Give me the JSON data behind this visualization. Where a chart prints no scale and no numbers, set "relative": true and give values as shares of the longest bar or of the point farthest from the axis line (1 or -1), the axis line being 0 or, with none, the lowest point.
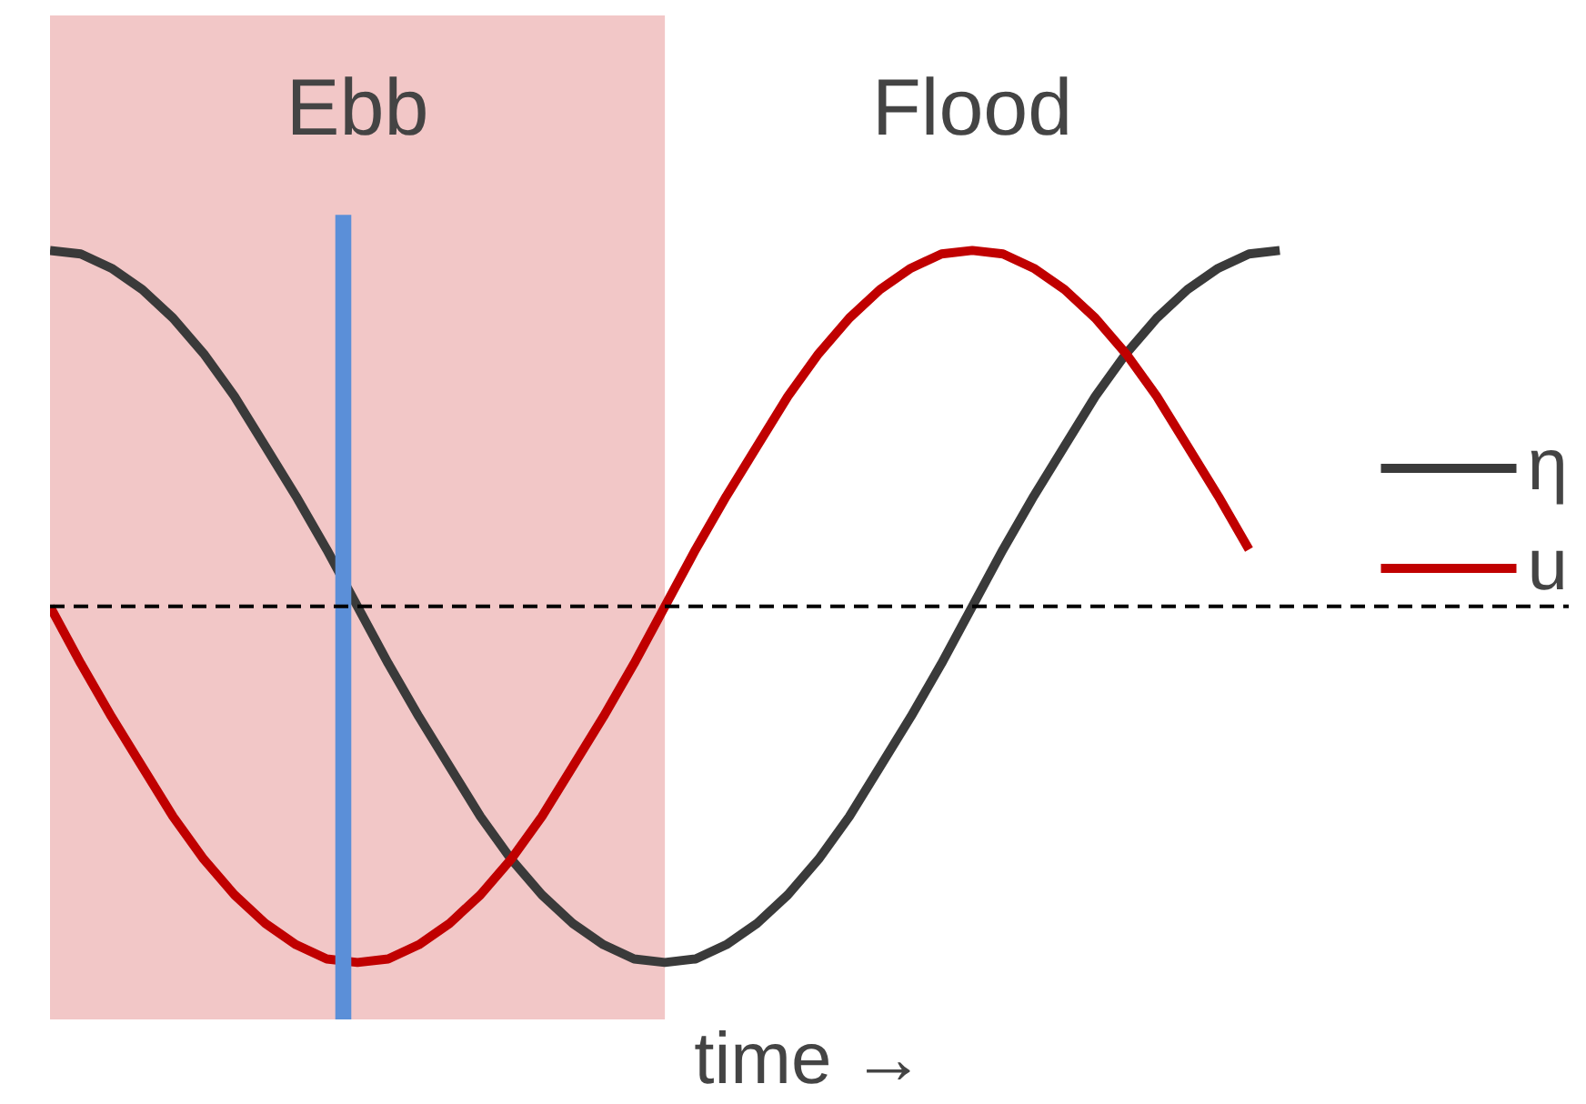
{
  "chart_data": {
    "type": "line",
    "relative": true,
    "xlabel": "time →",
    "categories": [
      null,
      null,
      null,
      null,
      null,
      null,
      null,
      null,
      null,
      null,
      null,
      null,
      null,
      null,
      null,
      null,
      null,
      null,
      null,
      null,
      null,
      null,
      null,
      null,
      null,
      null,
      null,
      null,
      null,
      null,
      null,
      null,
      null,
      null,
      null,
      null,
      null,
      null,
      null,
      null,
      null
    ],
    "series": [
      {
        "name": "η",
        "color": "#3a3a3a",
        "values": [
          1,
          0.99,
          0.95,
          0.89,
          0.81,
          0.71,
          0.59,
          0.45,
          0.31,
          0.16,
          0,
          -0.16,
          -0.31,
          -0.45,
          -0.59,
          -0.71,
          -0.81,
          -0.89,
          -0.95,
          -0.99,
          -1,
          -0.99,
          -0.95,
          -0.89,
          -0.81,
          -0.71,
          -0.59,
          -0.45,
          -0.31,
          -0.16,
          0,
          0.16,
          0.31,
          0.45,
          0.59,
          0.71,
          0.81,
          0.89,
          0.95,
          0.99,
          1
        ]
      },
      {
        "name": "u",
        "color": "#c00000",
        "values": [
          0,
          -0.16,
          -0.31,
          -0.45,
          -0.59,
          -0.71,
          -0.81,
          -0.89,
          -0.95,
          -0.99,
          -1,
          -0.99,
          -0.95,
          -0.89,
          -0.81,
          -0.71,
          -0.59,
          -0.45,
          -0.31,
          -0.16,
          0,
          0.16,
          0.31,
          0.45,
          0.59,
          0.71,
          0.81,
          0.89,
          0.95,
          0.99,
          1,
          0.99,
          0.95,
          0.89,
          0.81,
          0.71,
          0.59,
          0.45,
          0.31,
          0.16,
          null
        ]
      }
    ],
    "ref_lines": [
      {
        "axis": "y",
        "value": 0,
        "color": "#000000",
        "line_style": "dashed"
      }
    ],
    "annotations": [
      "Ebb",
      "Flood"
    ],
    "legend": "right",
    "marker": "none",
    "line_style": "solid",
    "grid": false
  }
}
